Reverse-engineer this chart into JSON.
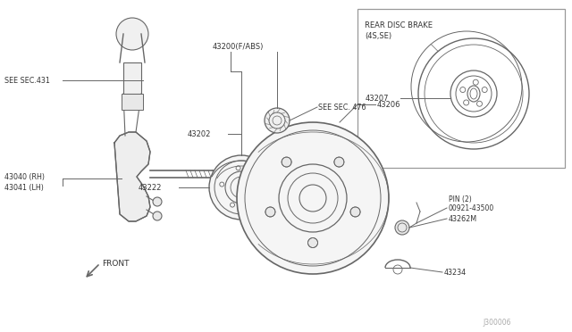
{
  "bg_color": "#ffffff",
  "line_color": "#666666",
  "text_color": "#333333",
  "fig_width": 6.4,
  "fig_height": 3.72,
  "dpi": 100,
  "watermark": "J300006",
  "parts": {
    "spindle_label1": "43040 (RH)",
    "spindle_label2": "43041 (LH)",
    "hub_label": "43202",
    "bearing_label": "43200(F/ABS)",
    "seal_label": "43222",
    "drum_label": "43206",
    "disc_label": "43207",
    "pin_label": "43262M",
    "pin2_label": "00921-43500\nPIN (2)",
    "cap_label": "43234",
    "sec431_label": "SEE SEC.431",
    "sec476_label": "SEE SEC. 476",
    "rear_disc_title1": "REAR DISC BRAKE",
    "rear_disc_title2": "(4S,SE)",
    "front_label": "FRONT"
  }
}
